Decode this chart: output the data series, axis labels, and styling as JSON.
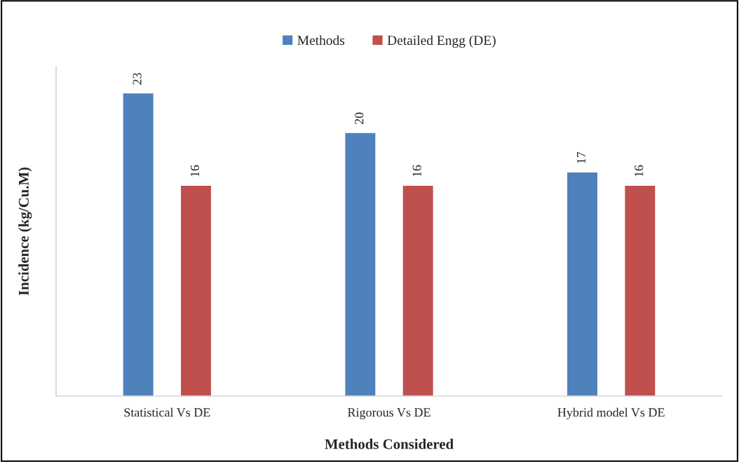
{
  "chart_data": {
    "type": "bar",
    "xlabel": "Methods Considered",
    "ylabel": "Incidence (kg/Cu.M)",
    "categories": [
      "Statistical Vs DE",
      "Rigorous Vs DE",
      "Hybrid model Vs DE"
    ],
    "series": [
      {
        "name": "Methods",
        "color": "#4f81bd",
        "values": [
          23,
          20,
          17
        ]
      },
      {
        "name": "Detailed Engg (DE)",
        "color": "#c0504d",
        "values": [
          16,
          16,
          16
        ]
      }
    ],
    "ylim": [
      0,
      25
    ],
    "tick_labels": "x",
    "data_labels": true,
    "legend": "top",
    "grid": false
  }
}
